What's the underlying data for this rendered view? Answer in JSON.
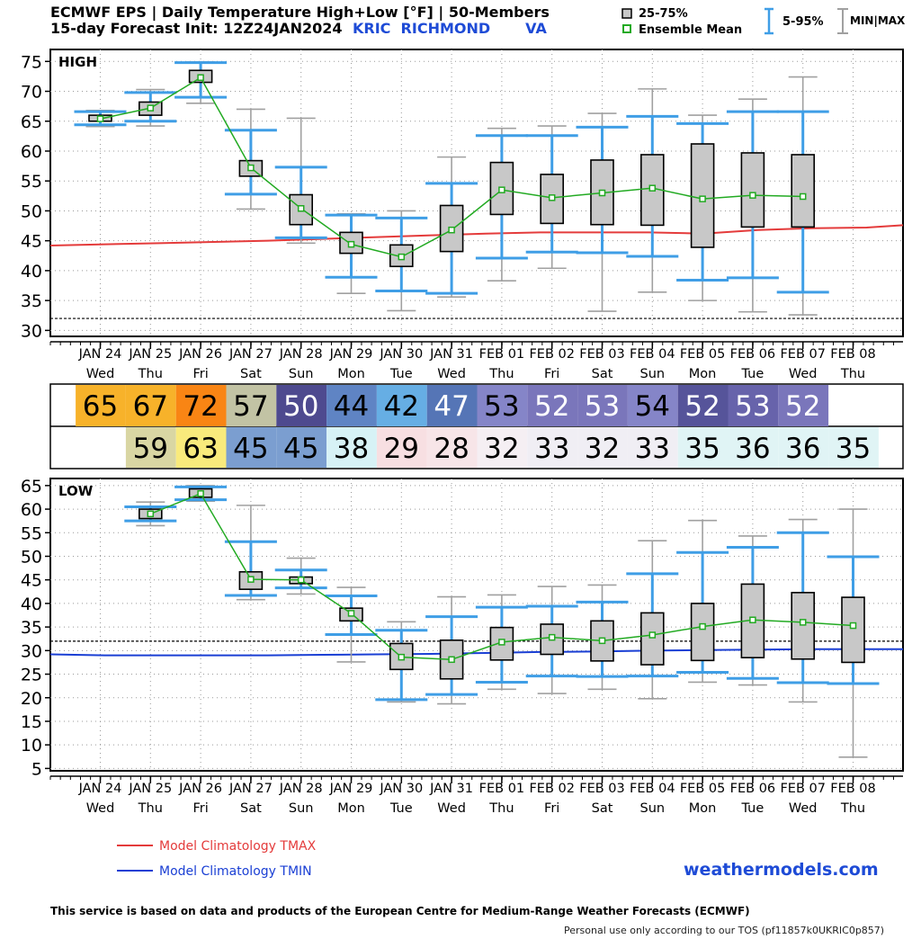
{
  "header": {
    "title_line1": "ECMWF EPS | Daily Temperature High+Low [°F] | 50-Members",
    "title_line2": "15-day Forecast Init: 12Z24JAN2024",
    "location": "KRIC  RICHMOND       VA"
  },
  "legend": {
    "box_label": "25-75%",
    "mean_label": "Ensemble Mean",
    "whisker_label": "5-95%",
    "minmax_label": "MIN|MAX"
  },
  "footer": {
    "clim_tmax": "Model Climatology TMAX",
    "clim_tmin": "Model Climatology TMIN",
    "brand": "weathermodels.com",
    "disclaimer": "This service is based on data and products of the European Centre for Medium-Range Weather Forecasts (ECMWF)",
    "tos": "Personal use only according to our TOS (pf11857k0UKRIC0p857)"
  },
  "colors": {
    "box": "#c8c8c8",
    "mean": "#22aa22",
    "whisker": "#3f9ee6",
    "minmax": "#a0a0a0",
    "clim_max": "#e43b3b",
    "clim_min": "#1a3fd4"
  },
  "days": [
    {
      "date": "JAN 24",
      "dow": "Wed"
    },
    {
      "date": "JAN 25",
      "dow": "Thu"
    },
    {
      "date": "JAN 26",
      "dow": "Fri"
    },
    {
      "date": "JAN 27",
      "dow": "Sat"
    },
    {
      "date": "JAN 28",
      "dow": "Sun"
    },
    {
      "date": "JAN 29",
      "dow": "Mon"
    },
    {
      "date": "JAN 30",
      "dow": "Tue"
    },
    {
      "date": "JAN 31",
      "dow": "Wed"
    },
    {
      "date": "FEB 01",
      "dow": "Thu"
    },
    {
      "date": "FEB 02",
      "dow": "Fri"
    },
    {
      "date": "FEB 03",
      "dow": "Sat"
    },
    {
      "date": "FEB 04",
      "dow": "Sun"
    },
    {
      "date": "FEB 05",
      "dow": "Mon"
    },
    {
      "date": "FEB 06",
      "dow": "Tue"
    },
    {
      "date": "FEB 07",
      "dow": "Wed"
    },
    {
      "date": "FEB 08",
      "dow": "Thu"
    }
  ],
  "strip": {
    "high": [
      {
        "v": "65",
        "bg": "#f7b22a",
        "fg": "#000"
      },
      {
        "v": "67",
        "bg": "#f7b22a",
        "fg": "#000"
      },
      {
        "v": "72",
        "bg": "#f98514",
        "fg": "#000"
      },
      {
        "v": "57",
        "bg": "#c2c3a4",
        "fg": "#000"
      },
      {
        "v": "50",
        "bg": "#4e4a8f",
        "fg": "#fff"
      },
      {
        "v": "44",
        "bg": "#5f84c4",
        "fg": "#000"
      },
      {
        "v": "42",
        "bg": "#66aee4",
        "fg": "#000"
      },
      {
        "v": "47",
        "bg": "#5575b6",
        "fg": "#fff"
      },
      {
        "v": "53",
        "bg": "#8585c8",
        "fg": "#000"
      },
      {
        "v": "52",
        "bg": "#7a76bb",
        "fg": "#fff"
      },
      {
        "v": "53",
        "bg": "#7a76bb",
        "fg": "#fff"
      },
      {
        "v": "54",
        "bg": "#8585c8",
        "fg": "#000"
      },
      {
        "v": "52",
        "bg": "#56549a",
        "fg": "#fff"
      },
      {
        "v": "53",
        "bg": "#6763ab",
        "fg": "#fff"
      },
      {
        "v": "52",
        "bg": "#7a76bb",
        "fg": "#fff"
      },
      {
        "v": "",
        "bg": "#ffffff",
        "fg": "#000"
      }
    ],
    "low": [
      {
        "v": "",
        "bg": "#ffffff",
        "fg": "#000"
      },
      {
        "v": "59",
        "bg": "#d9d6a3",
        "fg": "#000"
      },
      {
        "v": "63",
        "bg": "#f9ea7c",
        "fg": "#000"
      },
      {
        "v": "45",
        "bg": "#7b9ed0",
        "fg": "#000"
      },
      {
        "v": "45",
        "bg": "#7b9ed0",
        "fg": "#000"
      },
      {
        "v": "38",
        "bg": "#d7f2f6",
        "fg": "#000"
      },
      {
        "v": "29",
        "bg": "#f7dfe2",
        "fg": "#000"
      },
      {
        "v": "28",
        "bg": "#f7e5e8",
        "fg": "#000"
      },
      {
        "v": "32",
        "bg": "#f5eff3",
        "fg": "#000"
      },
      {
        "v": "33",
        "bg": "#f0eef4",
        "fg": "#000"
      },
      {
        "v": "32",
        "bg": "#f0eef4",
        "fg": "#000"
      },
      {
        "v": "33",
        "bg": "#f0eef4",
        "fg": "#000"
      },
      {
        "v": "35",
        "bg": "#e0f4f5",
        "fg": "#000"
      },
      {
        "v": "36",
        "bg": "#e0f4f5",
        "fg": "#000"
      },
      {
        "v": "36",
        "bg": "#e0f4f5",
        "fg": "#000"
      },
      {
        "v": "35",
        "bg": "#e0f4f5",
        "fg": "#000"
      }
    ]
  },
  "chart_data": [
    {
      "type": "box",
      "title": "HIGH",
      "ylim": [
        29,
        77
      ],
      "yticks": [
        30,
        35,
        40,
        45,
        50,
        55,
        60,
        65,
        70,
        75
      ],
      "freezing_line": 32,
      "grid": true,
      "categories": [
        "JAN 24",
        "JAN 25",
        "JAN 26",
        "JAN 27",
        "JAN 28",
        "JAN 29",
        "JAN 30",
        "JAN 31",
        "FEB 01",
        "FEB 02",
        "FEB 03",
        "FEB 04",
        "FEB 05",
        "FEB 06",
        "FEB 07"
      ],
      "series": [
        {
          "name": "Ensemble Mean",
          "values": [
            65.4,
            67.2,
            72.3,
            57.2,
            50.4,
            44.4,
            42.3,
            46.8,
            53.5,
            52.2,
            53.0,
            53.8,
            52.0,
            52.6,
            52.4
          ]
        }
      ],
      "boxes": [
        {
          "min": 64.1,
          "p5": 64.4,
          "q1": 65.0,
          "q3": 66.0,
          "p95": 66.6,
          "max": 66.8
        },
        {
          "min": 64.2,
          "p5": 65.0,
          "q1": 66.0,
          "q3": 68.2,
          "p95": 69.8,
          "max": 70.3
        },
        {
          "min": 68.0,
          "p5": 69.0,
          "q1": 71.5,
          "q3": 73.5,
          "p95": 74.8,
          "max": 74.9
        },
        {
          "min": 50.3,
          "p5": 52.8,
          "q1": 55.8,
          "q3": 58.4,
          "p95": 63.5,
          "max": 67.0
        },
        {
          "min": 44.6,
          "p5": 45.5,
          "q1": 47.7,
          "q3": 52.7,
          "p95": 57.3,
          "max": 65.5
        },
        {
          "min": 36.2,
          "p5": 38.9,
          "q1": 42.9,
          "q3": 46.4,
          "p95": 49.3,
          "max": 49.5
        },
        {
          "min": 33.3,
          "p5": 36.6,
          "q1": 40.7,
          "q3": 44.3,
          "p95": 48.8,
          "max": 50.0
        },
        {
          "min": 35.6,
          "p5": 36.2,
          "q1": 43.2,
          "q3": 50.9,
          "p95": 54.6,
          "max": 59.0
        },
        {
          "min": 38.3,
          "p5": 42.1,
          "q1": 49.4,
          "q3": 58.1,
          "p95": 62.6,
          "max": 63.8
        },
        {
          "min": 40.4,
          "p5": 43.1,
          "q1": 47.9,
          "q3": 56.1,
          "p95": 62.6,
          "max": 64.2
        },
        {
          "min": 33.2,
          "p5": 43.0,
          "q1": 47.7,
          "q3": 58.5,
          "p95": 64.0,
          "max": 66.3
        },
        {
          "min": 36.4,
          "p5": 42.4,
          "q1": 47.6,
          "q3": 59.4,
          "p95": 65.8,
          "max": 70.4
        },
        {
          "min": 35.0,
          "p5": 38.4,
          "q1": 43.9,
          "q3": 61.2,
          "p95": 64.6,
          "max": 66.0
        },
        {
          "min": 33.1,
          "p5": 38.8,
          "q1": 47.3,
          "q3": 59.7,
          "p95": 66.6,
          "max": 68.7
        },
        {
          "min": 32.6,
          "p5": 36.4,
          "q1": 47.3,
          "q3": 59.4,
          "p95": 66.6,
          "max": 72.4
        }
      ],
      "climatology": {
        "name": "Model Climatology TMAX",
        "values": [
          44.2,
          44.4,
          44.6,
          44.8,
          45.0,
          45.3,
          45.6,
          45.9,
          46.2,
          46.4,
          46.4,
          46.4,
          46.2,
          46.8,
          47.1,
          47.2,
          47.6
        ]
      }
    },
    {
      "type": "box",
      "title": "LOW",
      "ylim": [
        4.5,
        66.5
      ],
      "yticks": [
        5,
        10,
        15,
        20,
        25,
        30,
        35,
        40,
        45,
        50,
        55,
        60,
        65
      ],
      "freezing_line": 32,
      "grid": true,
      "categories": [
        "JAN 25",
        "JAN 26",
        "JAN 27",
        "JAN 28",
        "JAN 29",
        "JAN 30",
        "JAN 31",
        "FEB 01",
        "FEB 02",
        "FEB 03",
        "FEB 04",
        "FEB 05",
        "FEB 06",
        "FEB 07",
        "FEB 08"
      ],
      "series": [
        {
          "name": "Ensemble Mean",
          "values": [
            59.0,
            63.3,
            45.1,
            45.0,
            37.9,
            28.6,
            28.1,
            31.8,
            32.8,
            32.1,
            33.3,
            35.1,
            36.5,
            36.0,
            35.3
          ]
        }
      ],
      "boxes": [
        {
          "min": 56.5,
          "p5": 57.5,
          "q1": 58.0,
          "q3": 60.0,
          "p95": 60.5,
          "max": 61.5
        },
        {
          "min": 61.7,
          "p5": 62.0,
          "q1": 62.5,
          "q3": 64.3,
          "p95": 64.7,
          "max": 65.0
        },
        {
          "min": 40.8,
          "p5": 41.7,
          "q1": 43.0,
          "q3": 46.7,
          "p95": 53.1,
          "max": 60.8
        },
        {
          "min": 42.0,
          "p5": 43.3,
          "q1": 44.2,
          "q3": 45.6,
          "p95": 47.1,
          "max": 49.6
        },
        {
          "min": 27.6,
          "p5": 33.4,
          "q1": 36.3,
          "q3": 39.0,
          "p95": 41.6,
          "max": 43.4
        },
        {
          "min": 19.1,
          "p5": 19.6,
          "q1": 26.0,
          "q3": 31.5,
          "p95": 34.3,
          "max": 36.1
        },
        {
          "min": 18.7,
          "p5": 20.7,
          "q1": 24.0,
          "q3": 32.2,
          "p95": 37.2,
          "max": 41.4
        },
        {
          "min": 21.8,
          "p5": 23.3,
          "q1": 28.0,
          "q3": 34.9,
          "p95": 39.2,
          "max": 41.8
        },
        {
          "min": 20.9,
          "p5": 24.6,
          "q1": 29.2,
          "q3": 35.6,
          "p95": 39.4,
          "max": 43.6
        },
        {
          "min": 21.8,
          "p5": 24.5,
          "q1": 27.8,
          "q3": 36.3,
          "p95": 40.3,
          "max": 43.9
        },
        {
          "min": 19.8,
          "p5": 24.6,
          "q1": 27.0,
          "q3": 38.0,
          "p95": 46.3,
          "max": 53.3
        },
        {
          "min": 23.3,
          "p5": 25.4,
          "q1": 27.9,
          "q3": 40.0,
          "p95": 50.8,
          "max": 57.6
        },
        {
          "min": 22.7,
          "p5": 24.1,
          "q1": 28.5,
          "q3": 44.1,
          "p95": 51.9,
          "max": 54.3
        },
        {
          "min": 19.1,
          "p5": 23.2,
          "q1": 28.2,
          "q3": 42.3,
          "p95": 55.0,
          "max": 57.8
        },
        {
          "min": 7.4,
          "p5": 23.0,
          "q1": 27.5,
          "q3": 41.3,
          "p95": 49.9,
          "max": 60.0
        }
      ],
      "climatology": {
        "name": "Model Climatology TMIN",
        "values": [
          29.2,
          29.0,
          29.0,
          29.0,
          29.0,
          29.1,
          29.2,
          29.3,
          29.5,
          29.7,
          29.8,
          30.0,
          30.1,
          30.2,
          30.3,
          30.3,
          30.3
        ]
      }
    }
  ]
}
